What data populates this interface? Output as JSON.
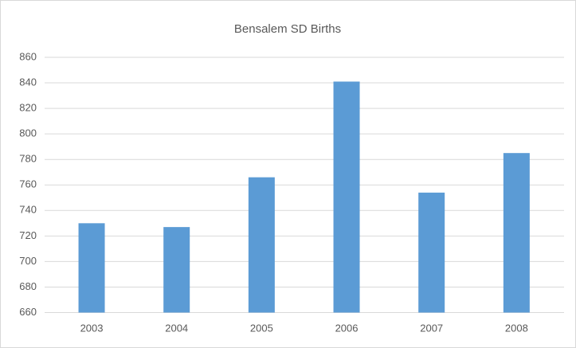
{
  "chart_data": {
    "type": "bar",
    "title": "Bensalem SD Births",
    "categories": [
      "2003",
      "2004",
      "2005",
      "2006",
      "2007",
      "2008"
    ],
    "values": [
      730,
      727,
      766,
      841,
      754,
      785
    ],
    "color": "#5b9bd5",
    "ylim": [
      660,
      860
    ],
    "yticks": [
      660,
      680,
      700,
      720,
      740,
      760,
      780,
      800,
      820,
      840,
      860
    ],
    "grid": true
  }
}
